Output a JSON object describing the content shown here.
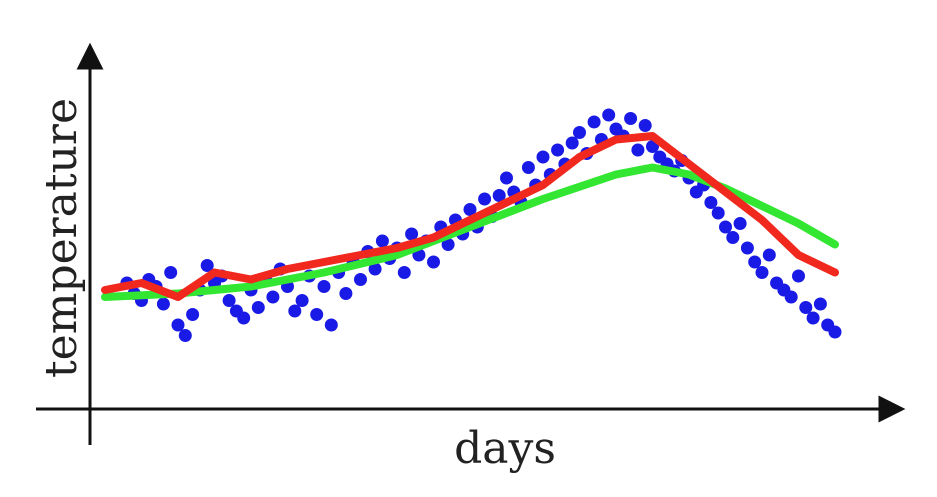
{
  "chart_data": {
    "type": "scatter",
    "xlabel": "days",
    "ylabel": "temperature",
    "xlim": [
      0,
      100
    ],
    "ylim": [
      0,
      100
    ],
    "grid": false,
    "colors": {
      "points": "#1a1ae6",
      "red_line": "#f0281e",
      "green_line": "#32e632",
      "axes": "#111111"
    },
    "points": [
      [
        3,
        32
      ],
      [
        4,
        29
      ],
      [
        5,
        27
      ],
      [
        6,
        33
      ],
      [
        7,
        31
      ],
      [
        8,
        26
      ],
      [
        9,
        35
      ],
      [
        10,
        20
      ],
      [
        11,
        17
      ],
      [
        12,
        23
      ],
      [
        13,
        30
      ],
      [
        14,
        37
      ],
      [
        15,
        32
      ],
      [
        16,
        34
      ],
      [
        17,
        27
      ],
      [
        18,
        24
      ],
      [
        19,
        22
      ],
      [
        20,
        30
      ],
      [
        21,
        25
      ],
      [
        22,
        33
      ],
      [
        23,
        28
      ],
      [
        24,
        36
      ],
      [
        25,
        31
      ],
      [
        26,
        24
      ],
      [
        27,
        27
      ],
      [
        28,
        34
      ],
      [
        29,
        23
      ],
      [
        30,
        31
      ],
      [
        31,
        20
      ],
      [
        32,
        35
      ],
      [
        33,
        29
      ],
      [
        34,
        38
      ],
      [
        35,
        33
      ],
      [
        36,
        41
      ],
      [
        37,
        36
      ],
      [
        38,
        44
      ],
      [
        39,
        39
      ],
      [
        40,
        42
      ],
      [
        41,
        35
      ],
      [
        42,
        46
      ],
      [
        43,
        40
      ],
      [
        44,
        44
      ],
      [
        45,
        38
      ],
      [
        46,
        48
      ],
      [
        47,
        43
      ],
      [
        48,
        50
      ],
      [
        49,
        46
      ],
      [
        50,
        53
      ],
      [
        51,
        48
      ],
      [
        52,
        56
      ],
      [
        53,
        51
      ],
      [
        54,
        57
      ],
      [
        55,
        62
      ],
      [
        56,
        58
      ],
      [
        57,
        55
      ],
      [
        58,
        65
      ],
      [
        59,
        60
      ],
      [
        60,
        68
      ],
      [
        61,
        63
      ],
      [
        62,
        70
      ],
      [
        63,
        66
      ],
      [
        64,
        72
      ],
      [
        65,
        75
      ],
      [
        66,
        69
      ],
      [
        67,
        78
      ],
      [
        68,
        73
      ],
      [
        69,
        80
      ],
      [
        70,
        76
      ],
      [
        71,
        74
      ],
      [
        72,
        79
      ],
      [
        73,
        70
      ],
      [
        74,
        77
      ],
      [
        75,
        71
      ],
      [
        76,
        68
      ],
      [
        77,
        66
      ],
      [
        78,
        64
      ],
      [
        79,
        67
      ],
      [
        80,
        62
      ],
      [
        81,
        58
      ],
      [
        82,
        60
      ],
      [
        83,
        55
      ],
      [
        84,
        52
      ],
      [
        85,
        48
      ],
      [
        86,
        45
      ],
      [
        87,
        49
      ],
      [
        88,
        42
      ],
      [
        89,
        38
      ],
      [
        90,
        35
      ],
      [
        91,
        40
      ],
      [
        92,
        32
      ],
      [
        93,
        30
      ],
      [
        94,
        28
      ],
      [
        95,
        34
      ],
      [
        96,
        25
      ],
      [
        97,
        22
      ],
      [
        98,
        26
      ],
      [
        99,
        20
      ],
      [
        100,
        18
      ]
    ],
    "red_series": [
      [
        0,
        30
      ],
      [
        5,
        32
      ],
      [
        10,
        28
      ],
      [
        15,
        35
      ],
      [
        20,
        33
      ],
      [
        25,
        36
      ],
      [
        30,
        38
      ],
      [
        35,
        40
      ],
      [
        40,
        42
      ],
      [
        45,
        45
      ],
      [
        50,
        50
      ],
      [
        55,
        55
      ],
      [
        60,
        60
      ],
      [
        65,
        68
      ],
      [
        70,
        73
      ],
      [
        75,
        74
      ],
      [
        80,
        66
      ],
      [
        85,
        58
      ],
      [
        90,
        50
      ],
      [
        95,
        40
      ],
      [
        100,
        35
      ]
    ],
    "green_series": [
      [
        0,
        28
      ],
      [
        10,
        29
      ],
      [
        20,
        31
      ],
      [
        30,
        35
      ],
      [
        40,
        40
      ],
      [
        50,
        48
      ],
      [
        60,
        56
      ],
      [
        70,
        63
      ],
      [
        75,
        65
      ],
      [
        80,
        63
      ],
      [
        85,
        59
      ],
      [
        90,
        54
      ],
      [
        95,
        49
      ],
      [
        100,
        43
      ]
    ]
  }
}
